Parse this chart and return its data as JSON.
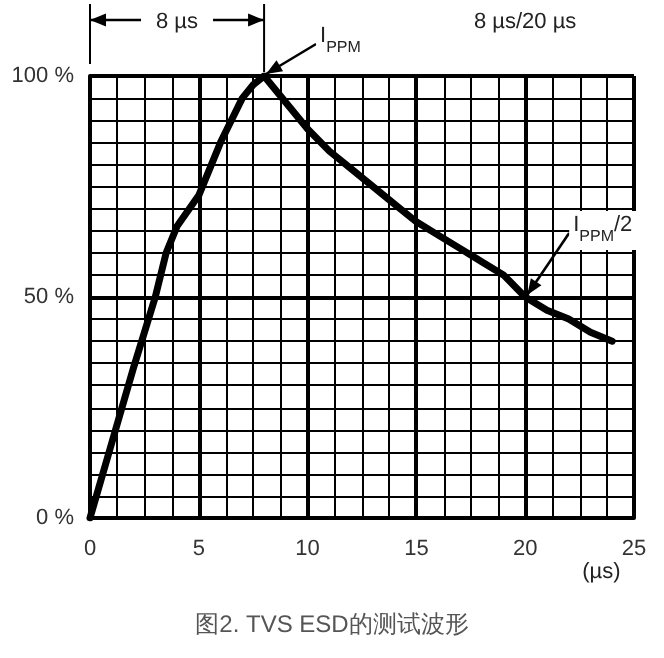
{
  "chart_data": {
    "type": "line",
    "title": "图2. TVS ESD的测试波形",
    "xlabel": "(µs)",
    "x": [
      0,
      1,
      2,
      3,
      3.5,
      4,
      5,
      6,
      7,
      7.5,
      8,
      9,
      10,
      11,
      12,
      13,
      14,
      15,
      16,
      17,
      18,
      19,
      20,
      21,
      22,
      23,
      24
    ],
    "series": [
      {
        "color": "#000000",
        "values": [
          0,
          17,
          34,
          50,
          60,
          66,
          73,
          85,
          95,
          98,
          100,
          94,
          88,
          83,
          79,
          75,
          71,
          67,
          64,
          61,
          58,
          55,
          50,
          47,
          45,
          42,
          40
        ]
      }
    ],
    "xlim": [
      0,
      25
    ],
    "xticks": [
      0,
      5,
      10,
      15,
      20,
      25
    ],
    "ylim": [
      0,
      100
    ],
    "yticks": [
      {
        "value": 0,
        "label": "0 %"
      },
      {
        "value": 50,
        "label": "50 %"
      },
      {
        "value": 100,
        "label": "100 %"
      }
    ],
    "grid": true,
    "marker": "none",
    "line_style": "solid",
    "annotations": [
      "8 µs",
      "8 µs/20 µs",
      {
        "text": "I$_{PPM}$",
        "x": 8,
        "y": 100
      },
      {
        "text": "I$_{PPM}$/2",
        "x": 20,
        "y": 50
      }
    ]
  }
}
